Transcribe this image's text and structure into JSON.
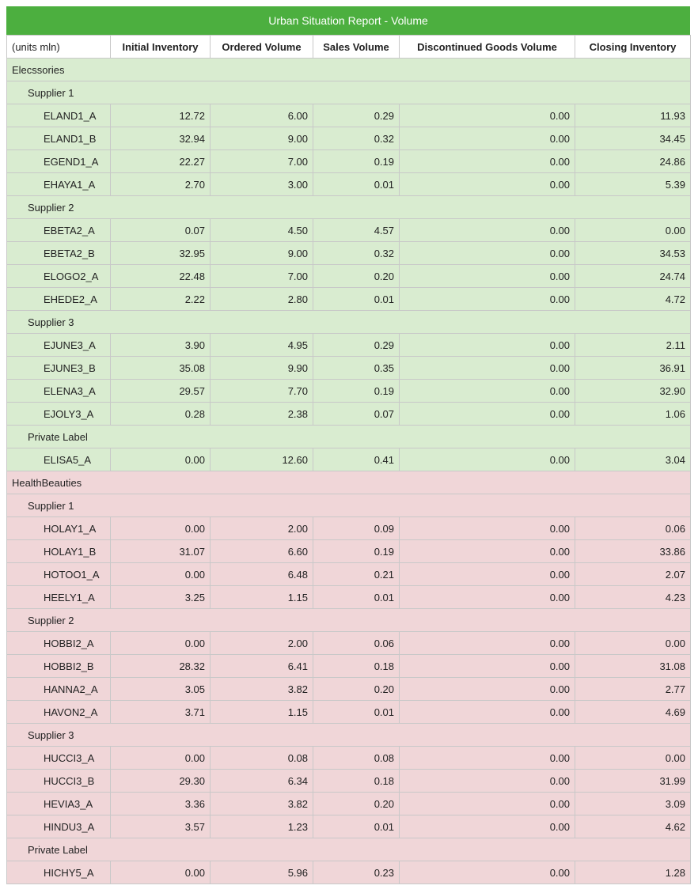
{
  "report": {
    "title": "Urban Situation Report - Volume",
    "headers": [
      "(units mln)",
      "Initial Inventory",
      "Ordered Volume",
      "Sales Volume",
      "Discontinued Goods Volume",
      "Closing Inventory"
    ]
  },
  "colors": {
    "title_bg": "#4caf3f",
    "elecssories_bg": "#d9ecd0",
    "healthbeauties_bg": "#f0d6d8"
  },
  "groups": [
    {
      "name": "Elecssories",
      "suppliers": [
        {
          "name": "Supplier 1",
          "items": [
            [
              "ELAND1_A",
              "12.72",
              "6.00",
              "0.29",
              "0.00",
              "11.93"
            ],
            [
              "ELAND1_B",
              "32.94",
              "9.00",
              "0.32",
              "0.00",
              "34.45"
            ],
            [
              "EGEND1_A",
              "22.27",
              "7.00",
              "0.19",
              "0.00",
              "24.86"
            ],
            [
              "EHAYA1_A",
              "2.70",
              "3.00",
              "0.01",
              "0.00",
              "5.39"
            ]
          ]
        },
        {
          "name": "Supplier 2",
          "items": [
            [
              "EBETA2_A",
              "0.07",
              "4.50",
              "4.57",
              "0.00",
              "0.00"
            ],
            [
              "EBETA2_B",
              "32.95",
              "9.00",
              "0.32",
              "0.00",
              "34.53"
            ],
            [
              "ELOGO2_A",
              "22.48",
              "7.00",
              "0.20",
              "0.00",
              "24.74"
            ],
            [
              "EHEDE2_A",
              "2.22",
              "2.80",
              "0.01",
              "0.00",
              "4.72"
            ]
          ]
        },
        {
          "name": "Supplier 3",
          "items": [
            [
              "EJUNE3_A",
              "3.90",
              "4.95",
              "0.29",
              "0.00",
              "2.11"
            ],
            [
              "EJUNE3_B",
              "35.08",
              "9.90",
              "0.35",
              "0.00",
              "36.91"
            ],
            [
              "ELENA3_A",
              "29.57",
              "7.70",
              "0.19",
              "0.00",
              "32.90"
            ],
            [
              "EJOLY3_A",
              "0.28",
              "2.38",
              "0.07",
              "0.00",
              "1.06"
            ]
          ]
        },
        {
          "name": "Private Label",
          "items": [
            [
              "ELISA5_A",
              "0.00",
              "12.60",
              "0.41",
              "0.00",
              "3.04"
            ]
          ]
        }
      ]
    },
    {
      "name": "HealthBeauties",
      "suppliers": [
        {
          "name": "Supplier 1",
          "items": [
            [
              "HOLAY1_A",
              "0.00",
              "2.00",
              "0.09",
              "0.00",
              "0.06"
            ],
            [
              "HOLAY1_B",
              "31.07",
              "6.60",
              "0.19",
              "0.00",
              "33.86"
            ],
            [
              "HOTOO1_A",
              "0.00",
              "6.48",
              "0.21",
              "0.00",
              "2.07"
            ],
            [
              "HEELY1_A",
              "3.25",
              "1.15",
              "0.01",
              "0.00",
              "4.23"
            ]
          ]
        },
        {
          "name": "Supplier 2",
          "items": [
            [
              "HOBBI2_A",
              "0.00",
              "2.00",
              "0.06",
              "0.00",
              "0.00"
            ],
            [
              "HOBBI2_B",
              "28.32",
              "6.41",
              "0.18",
              "0.00",
              "31.08"
            ],
            [
              "HANNA2_A",
              "3.05",
              "3.82",
              "0.20",
              "0.00",
              "2.77"
            ],
            [
              "HAVON2_A",
              "3.71",
              "1.15",
              "0.01",
              "0.00",
              "4.69"
            ]
          ]
        },
        {
          "name": "Supplier 3",
          "items": [
            [
              "HUCCI3_A",
              "0.00",
              "0.08",
              "0.08",
              "0.00",
              "0.00"
            ],
            [
              "HUCCI3_B",
              "29.30",
              "6.34",
              "0.18",
              "0.00",
              "31.99"
            ],
            [
              "HEVIA3_A",
              "3.36",
              "3.82",
              "0.20",
              "0.00",
              "3.09"
            ],
            [
              "HINDU3_A",
              "3.57",
              "1.23",
              "0.01",
              "0.00",
              "4.62"
            ]
          ]
        },
        {
          "name": "Private Label",
          "items": [
            [
              "HICHY5_A",
              "0.00",
              "5.96",
              "0.23",
              "0.00",
              "1.28"
            ]
          ]
        }
      ]
    }
  ]
}
